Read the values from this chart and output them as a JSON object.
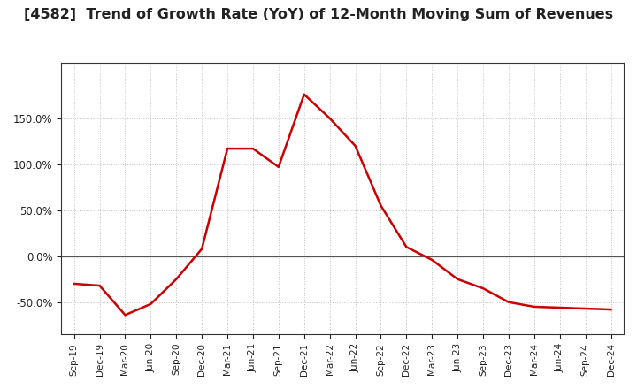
{
  "title": "[4582]  Trend of Growth Rate (YoY) of 12-Month Moving Sum of Revenues",
  "title_fontsize": 11.5,
  "line_color": "#CC0000",
  "line_width": 1.8,
  "background_color": "#ffffff",
  "grid_color": "#999999",
  "x_labels": [
    "Sep-19",
    "Dec-19",
    "Mar-20",
    "Jun-20",
    "Sep-20",
    "Dec-20",
    "Mar-21",
    "Jun-21",
    "Sep-21",
    "Dec-21",
    "Mar-22",
    "Jun-22",
    "Sep-22",
    "Dec-22",
    "Mar-23",
    "Jun-23",
    "Sep-23",
    "Dec-23",
    "Mar-24",
    "Jun-24",
    "Sep-24",
    "Dec-24"
  ],
  "values": [
    -30.0,
    -32.0,
    -64.0,
    -52.0,
    -25.0,
    8.0,
    117.0,
    117.0,
    97.0,
    176.0,
    150.0,
    120.0,
    55.0,
    10.0,
    -4.0,
    -25.0,
    -35.0,
    -50.0,
    -55.0,
    -56.0,
    -57.0,
    -58.0
  ],
  "yticks": [
    -50.0,
    0.0,
    50.0,
    100.0,
    150.0
  ],
  "ylim": [
    -85.0,
    210.0
  ]
}
